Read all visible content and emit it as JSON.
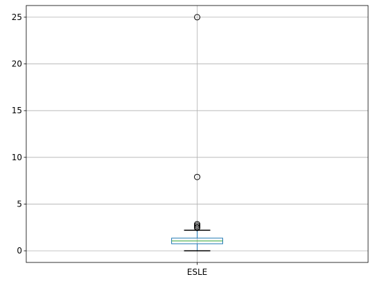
{
  "chart_data": {
    "type": "boxplot",
    "title": "",
    "xlabel": "",
    "ylabel": "",
    "categories": [
      "ESLE"
    ],
    "grid": true,
    "ylim": [
      -1.25,
      26.25
    ],
    "yticks": [
      0,
      5,
      10,
      15,
      20,
      25
    ],
    "boxes": [
      {
        "label": "ESLE",
        "whisker_low": 0.0,
        "q1": 0.75,
        "median": 1.05,
        "q3": 1.35,
        "whisker_high": 2.2,
        "outliers": [
          2.45,
          2.55,
          2.7,
          2.85,
          7.9,
          25.0
        ]
      }
    ],
    "colors": {
      "box": "#1f77b4",
      "median": "#2ca02c",
      "whisker": "#000000",
      "grid": "#b0b0b0",
      "axes": "#000000"
    }
  }
}
